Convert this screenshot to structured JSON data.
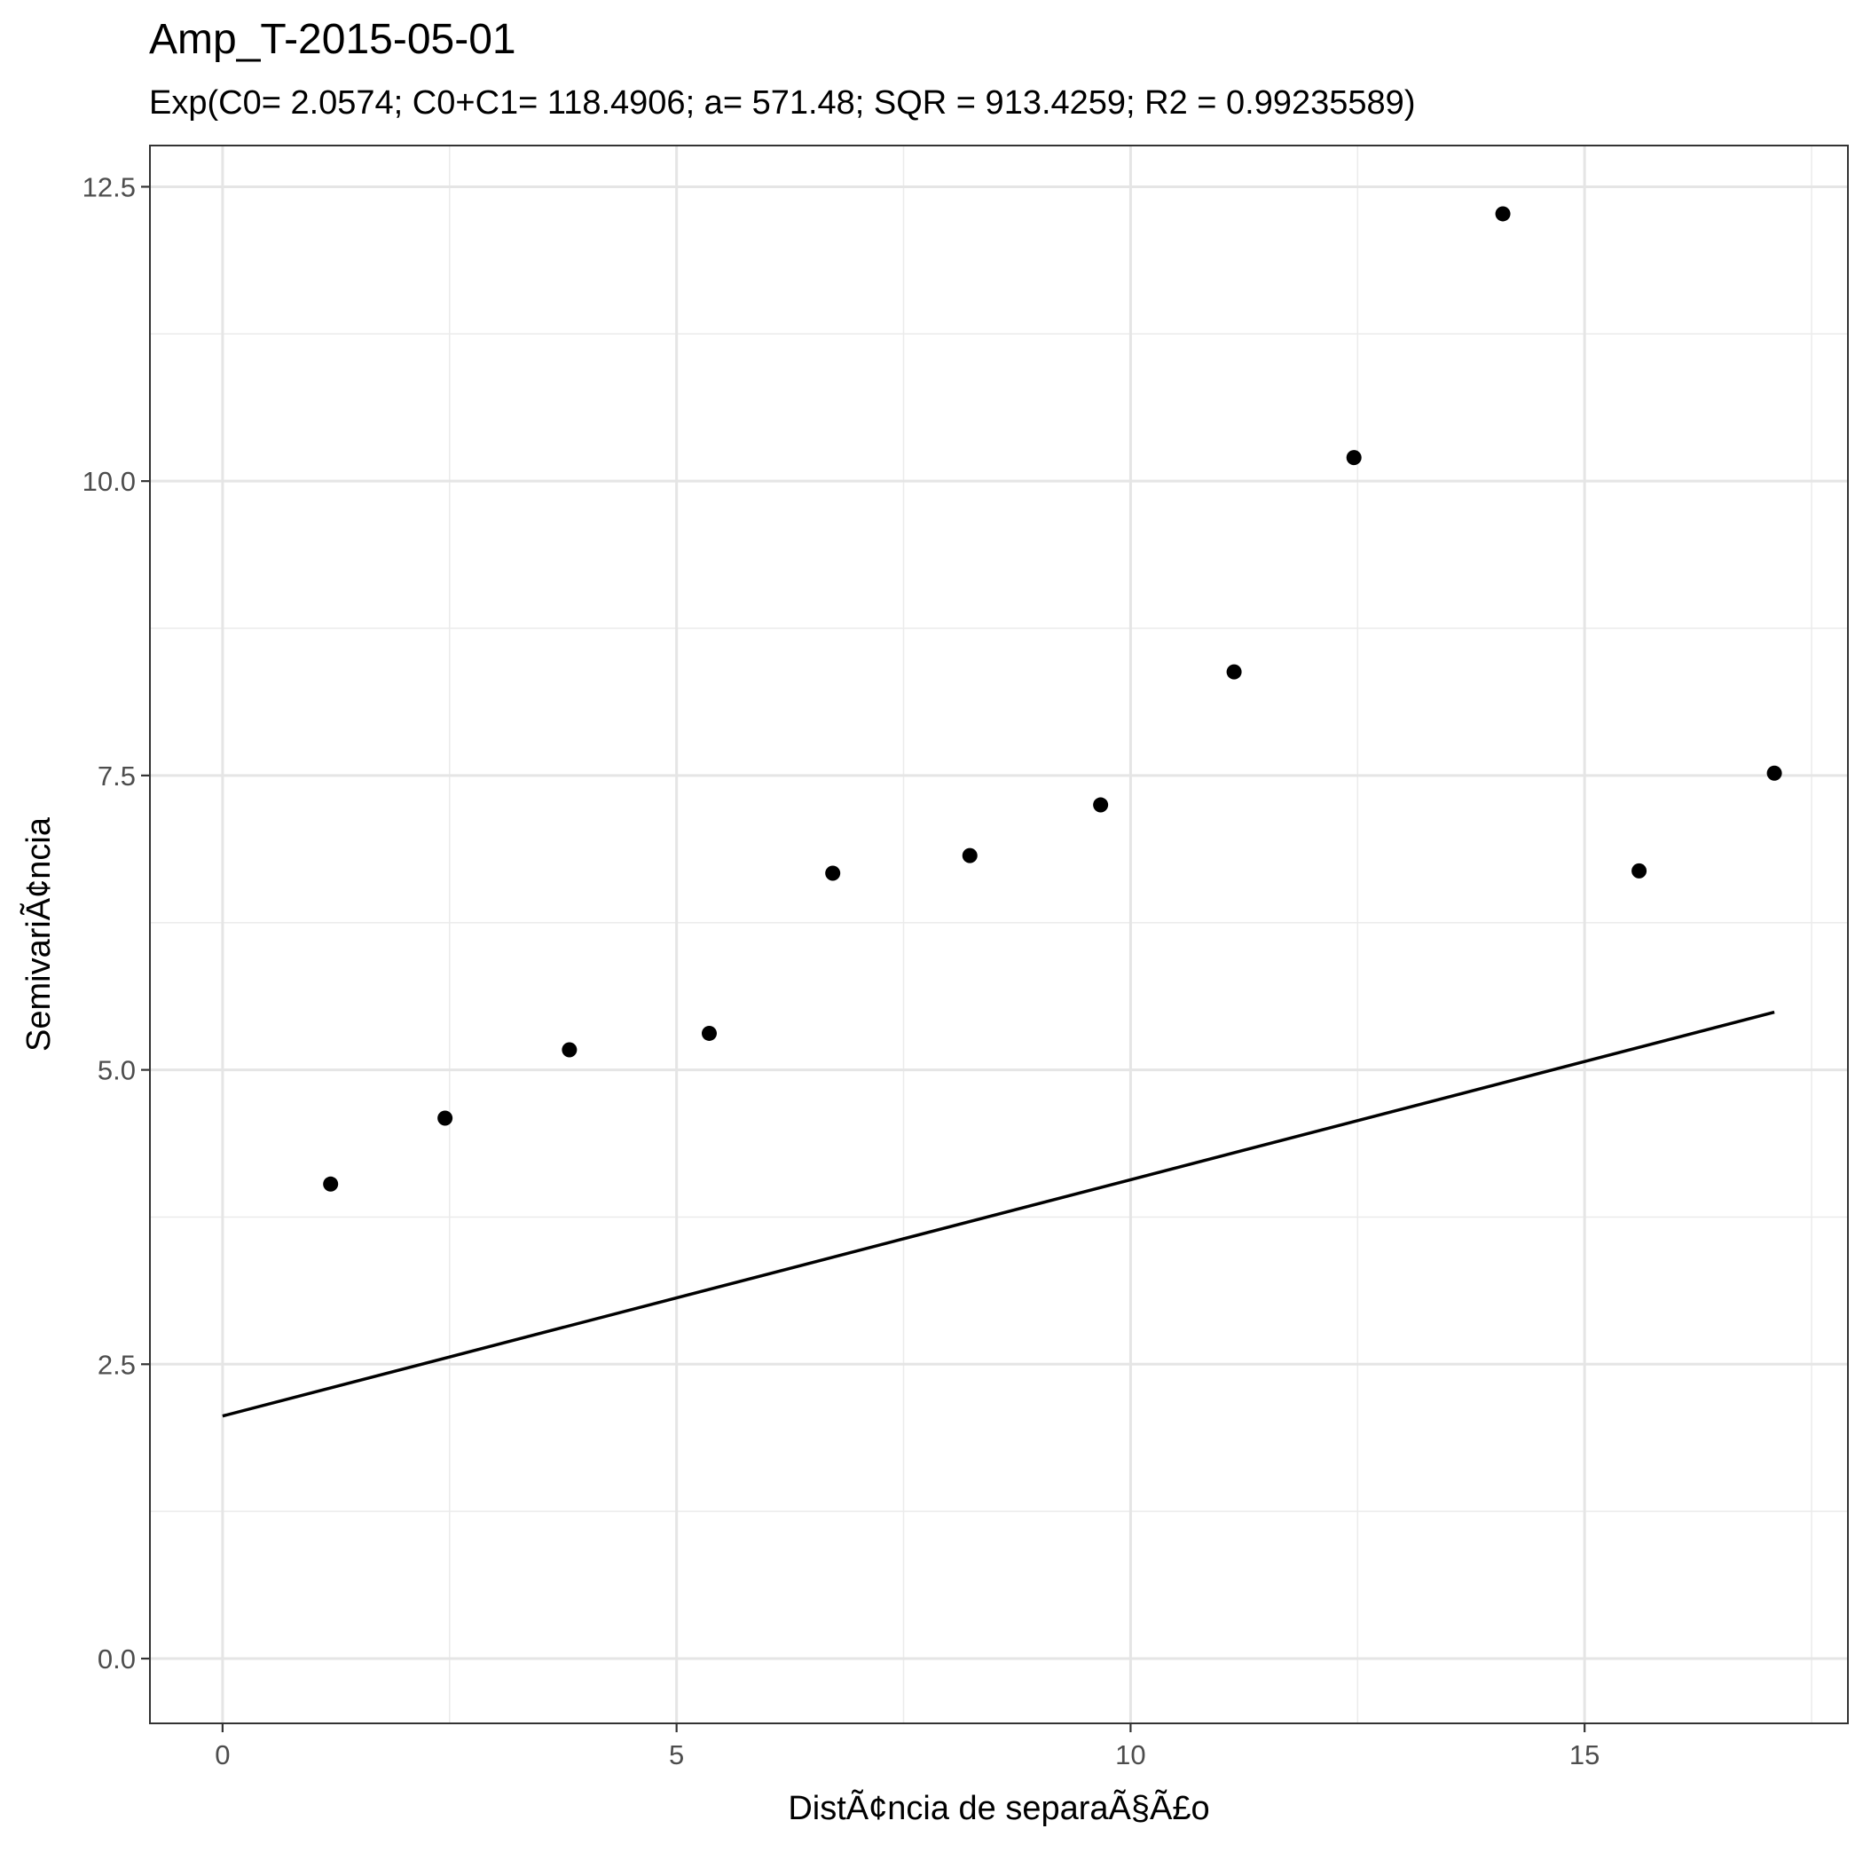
{
  "chart_data": {
    "type": "scatter",
    "title": "Amp_T-2015-05-01",
    "subtitle": "Exp(C0= 2.0574; C0+C1= 118.4906; a= 571.48; SQR = 913.4259; R2 = 0.99235589)",
    "xlabel": "DistÃ¢ncia de separaÃ§Ã£o",
    "ylabel": "SemivariÃ¢ncia",
    "xlim": [
      -0.8,
      17.9
    ],
    "ylim": [
      -0.55,
      12.85
    ],
    "x_ticks": [
      0,
      5,
      10,
      15
    ],
    "x_tick_labels": [
      "0",
      "5",
      "10",
      "15"
    ],
    "y_ticks": [
      0,
      2.5,
      5,
      7.5,
      10,
      12.5
    ],
    "y_tick_labels": [
      "0.0",
      "2.5",
      "5.0",
      "7.5",
      "10.0",
      "12.5"
    ],
    "grid": true,
    "series": [
      {
        "type": "scatter",
        "x": [
          1.19,
          2.45,
          3.82,
          5.36,
          6.72,
          8.23,
          9.67,
          11.14,
          12.46,
          14.1,
          15.6,
          17.09
        ],
        "y": [
          4.03,
          4.59,
          5.17,
          5.31,
          6.67,
          6.82,
          7.25,
          8.38,
          10.2,
          12.27,
          6.69,
          7.52
        ]
      },
      {
        "type": "line",
        "x": [
          0,
          17.09
        ],
        "y": [
          2.06,
          5.49
        ]
      }
    ]
  }
}
